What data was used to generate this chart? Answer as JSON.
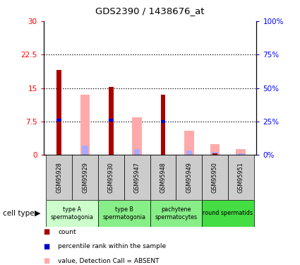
{
  "title": "GDS2390 / 1438676_at",
  "samples": [
    "GSM95928",
    "GSM95929",
    "GSM95930",
    "GSM95947",
    "GSM95948",
    "GSM95949",
    "GSM95950",
    "GSM95951"
  ],
  "count_values": [
    19.0,
    0,
    15.2,
    0,
    13.5,
    0,
    0.3,
    0
  ],
  "percentile_values": [
    26,
    0,
    26,
    0,
    25,
    0,
    0,
    0
  ],
  "absent_value_values": [
    0,
    13.5,
    0,
    8.5,
    0,
    5.5,
    2.5,
    1.3
  ],
  "absent_rank_values": [
    0,
    7.2,
    0,
    4.2,
    0,
    3.2,
    2.5,
    1.0
  ],
  "cell_types": [
    {
      "label": "type A\nspermatogonia",
      "samples": [
        0,
        1
      ],
      "color": "#ccffcc"
    },
    {
      "label": "type B\nspermatogonia",
      "samples": [
        2,
        3
      ],
      "color": "#66ee66"
    },
    {
      "label": "pachytene\nspermatocytes",
      "samples": [
        4,
        5
      ],
      "color": "#66ee66"
    },
    {
      "label": "round spermatids",
      "samples": [
        6,
        7
      ],
      "color": "#33dd33"
    }
  ],
  "ylim_left": [
    0,
    30
  ],
  "yticks_left": [
    0,
    7.5,
    15,
    22.5,
    30
  ],
  "ytick_labels_left": [
    "0",
    "7.5",
    "15",
    "22.5",
    "30"
  ],
  "yticks_right": [
    0,
    25,
    50,
    75,
    100
  ],
  "ytick_labels_right": [
    "0%",
    "25%",
    "50%",
    "75%",
    "100%"
  ],
  "count_color": "#aa0000",
  "percentile_color": "#0000cc",
  "absent_value_color": "#ffaaaa",
  "absent_rank_color": "#aaaaff",
  "legend_items": [
    {
      "color": "#aa0000",
      "label": "count"
    },
    {
      "color": "#0000cc",
      "label": "percentile rank within the sample"
    },
    {
      "color": "#ffaaaa",
      "label": "value, Detection Call = ABSENT"
    },
    {
      "color": "#aaaaff",
      "label": "rank, Detection Call = ABSENT"
    }
  ]
}
